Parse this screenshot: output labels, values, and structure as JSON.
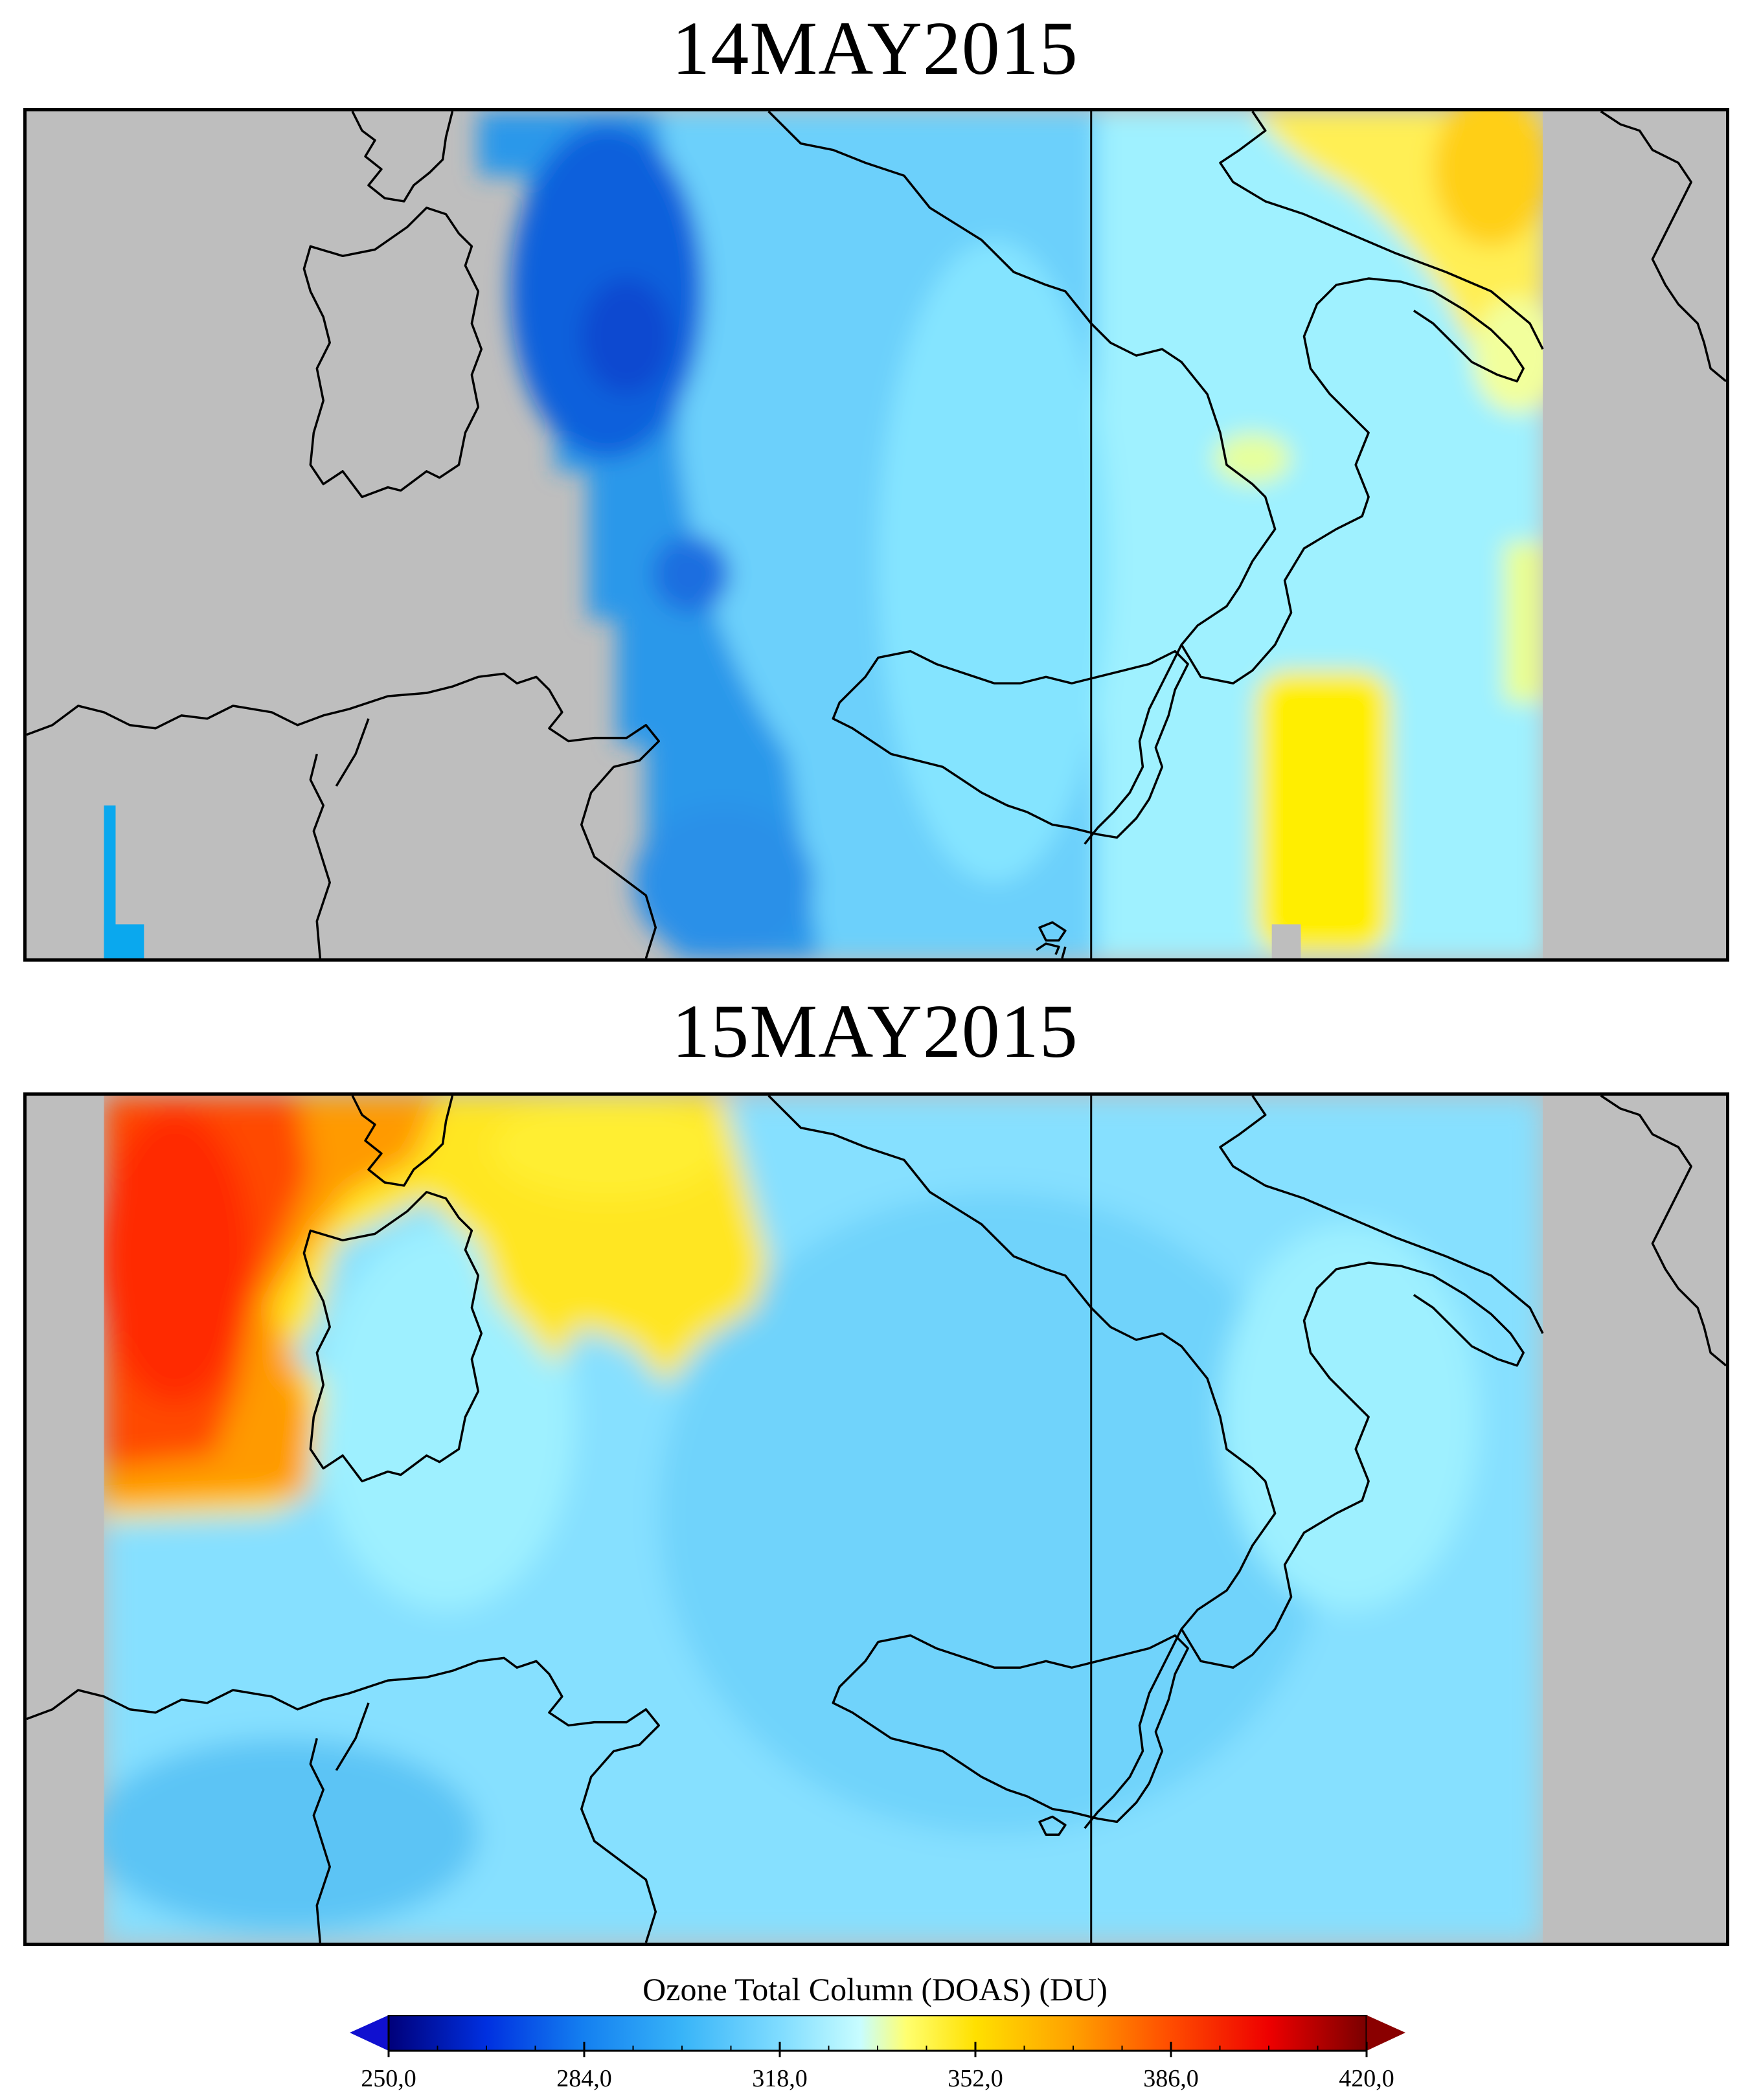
{
  "panels": [
    {
      "title": "14MAY2015",
      "colors": {
        "background": "#bebebe",
        "coast": "#000000"
      }
    },
    {
      "title": "15MAY2015",
      "colors": {
        "background": "#bebebe",
        "coast": "#000000"
      }
    }
  ],
  "colorbar": {
    "title": "Ozone Total Column (DOAS) (DU)",
    "min": 250.0,
    "max": 420.0,
    "tick_values": [
      250.0,
      284.0,
      318.0,
      352.0,
      386.0,
      420.0
    ],
    "tick_labels": [
      "250,0",
      "284,0",
      "318,0",
      "352,0",
      "386,0",
      "420,0"
    ],
    "stops": [
      {
        "value": 250.0,
        "color": "#00007a"
      },
      {
        "value": 267.0,
        "color": "#0030e0"
      },
      {
        "value": 284.0,
        "color": "#1480f0"
      },
      {
        "value": 301.0,
        "color": "#38b4f8"
      },
      {
        "value": 318.0,
        "color": "#7fdcff"
      },
      {
        "value": 332.0,
        "color": "#c8fdff"
      },
      {
        "value": 340.0,
        "color": "#ffff70"
      },
      {
        "value": 352.0,
        "color": "#ffe000"
      },
      {
        "value": 369.0,
        "color": "#ffa000"
      },
      {
        "value": 386.0,
        "color": "#ff4c00"
      },
      {
        "value": 403.0,
        "color": "#ee0000"
      },
      {
        "value": 420.0,
        "color": "#7a0000"
      }
    ],
    "under_color": "#1010d0",
    "over_color": "#8a0000"
  }
}
